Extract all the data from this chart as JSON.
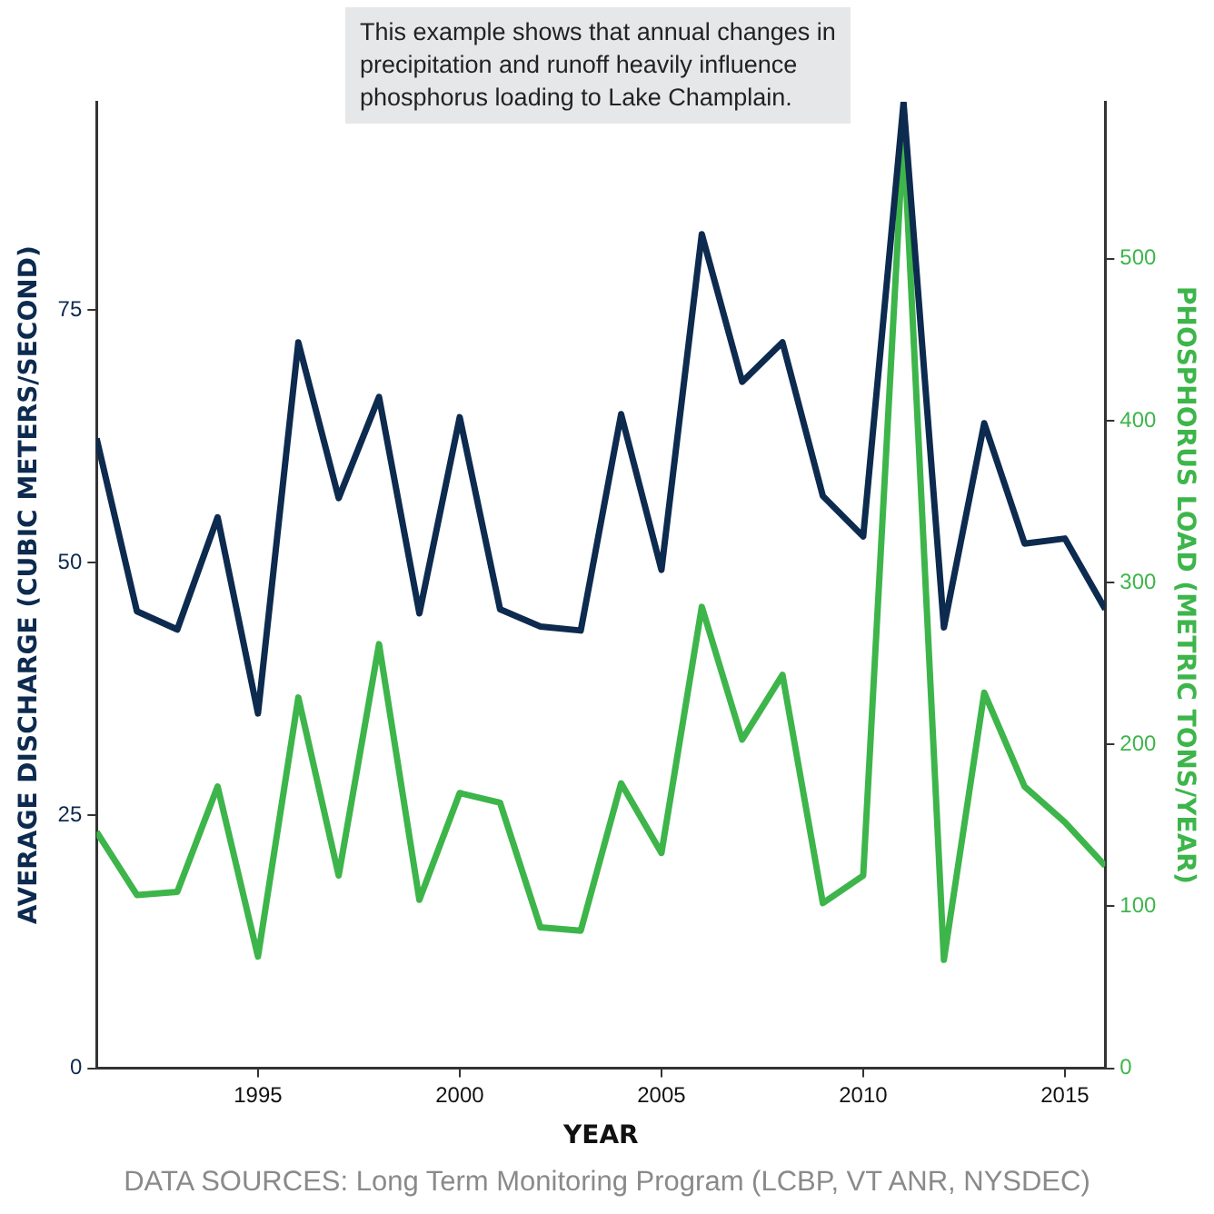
{
  "chart_data": {
    "type": "line",
    "xlabel": "YEAR",
    "ylabel": "AVERAGE DISCHARGE (CUBIC METERS/SECOND)",
    "y2label": "PHOSPHORUS LOAD (METRIC TONS/YEAR)",
    "annotations": [
      "This example shows that annual changes in precipitation and runoff heavily influence phosphorus loading to Lake Champlain.",
      "DATA SOURCES: Long Term Monitoring Program (LCBP, VT ANR, NYSDEC)"
    ],
    "x": [
      1991,
      1992,
      1993,
      1994,
      1995,
      1996,
      1997,
      1998,
      1999,
      2000,
      2001,
      2002,
      2003,
      2004,
      2005,
      2006,
      2007,
      2008,
      2009,
      2010,
      2011,
      2012,
      2013,
      2014,
      2015,
      2016
    ],
    "series": [
      {
        "color": "#0d2a4f",
        "values": [
          62.3,
          45.2,
          43.4,
          54.5,
          35.1,
          71.8,
          56.4,
          66.4,
          45.0,
          64.4,
          45.4,
          43.7,
          43.3,
          64.7,
          49.3,
          82.5,
          67.9,
          71.8,
          56.6,
          52.6,
          95.5,
          43.6,
          63.8,
          51.9,
          52.4,
          45.4
        ]
      },
      {
        "color": "#3db54a",
        "axis": "y2",
        "values": [
          146,
          107,
          109,
          174,
          69,
          229,
          119,
          262,
          104,
          170,
          164,
          87,
          85,
          176,
          133,
          285,
          203,
          243,
          102,
          119,
          578,
          67,
          232,
          174,
          152,
          125
        ]
      }
    ],
    "xlim": [
      1991,
      2016
    ],
    "xticks": [
      1995,
      2000,
      2005,
      2010,
      2015
    ],
    "ylim": [
      0,
      95.6
    ],
    "yticks": [
      0,
      25,
      50,
      75
    ],
    "y2lim": [
      0,
      597
    ],
    "y2ticks": [
      0,
      100,
      200,
      300,
      400,
      500
    ],
    "grid": false,
    "legend": false,
    "marker": "none",
    "line_style": "solid"
  }
}
